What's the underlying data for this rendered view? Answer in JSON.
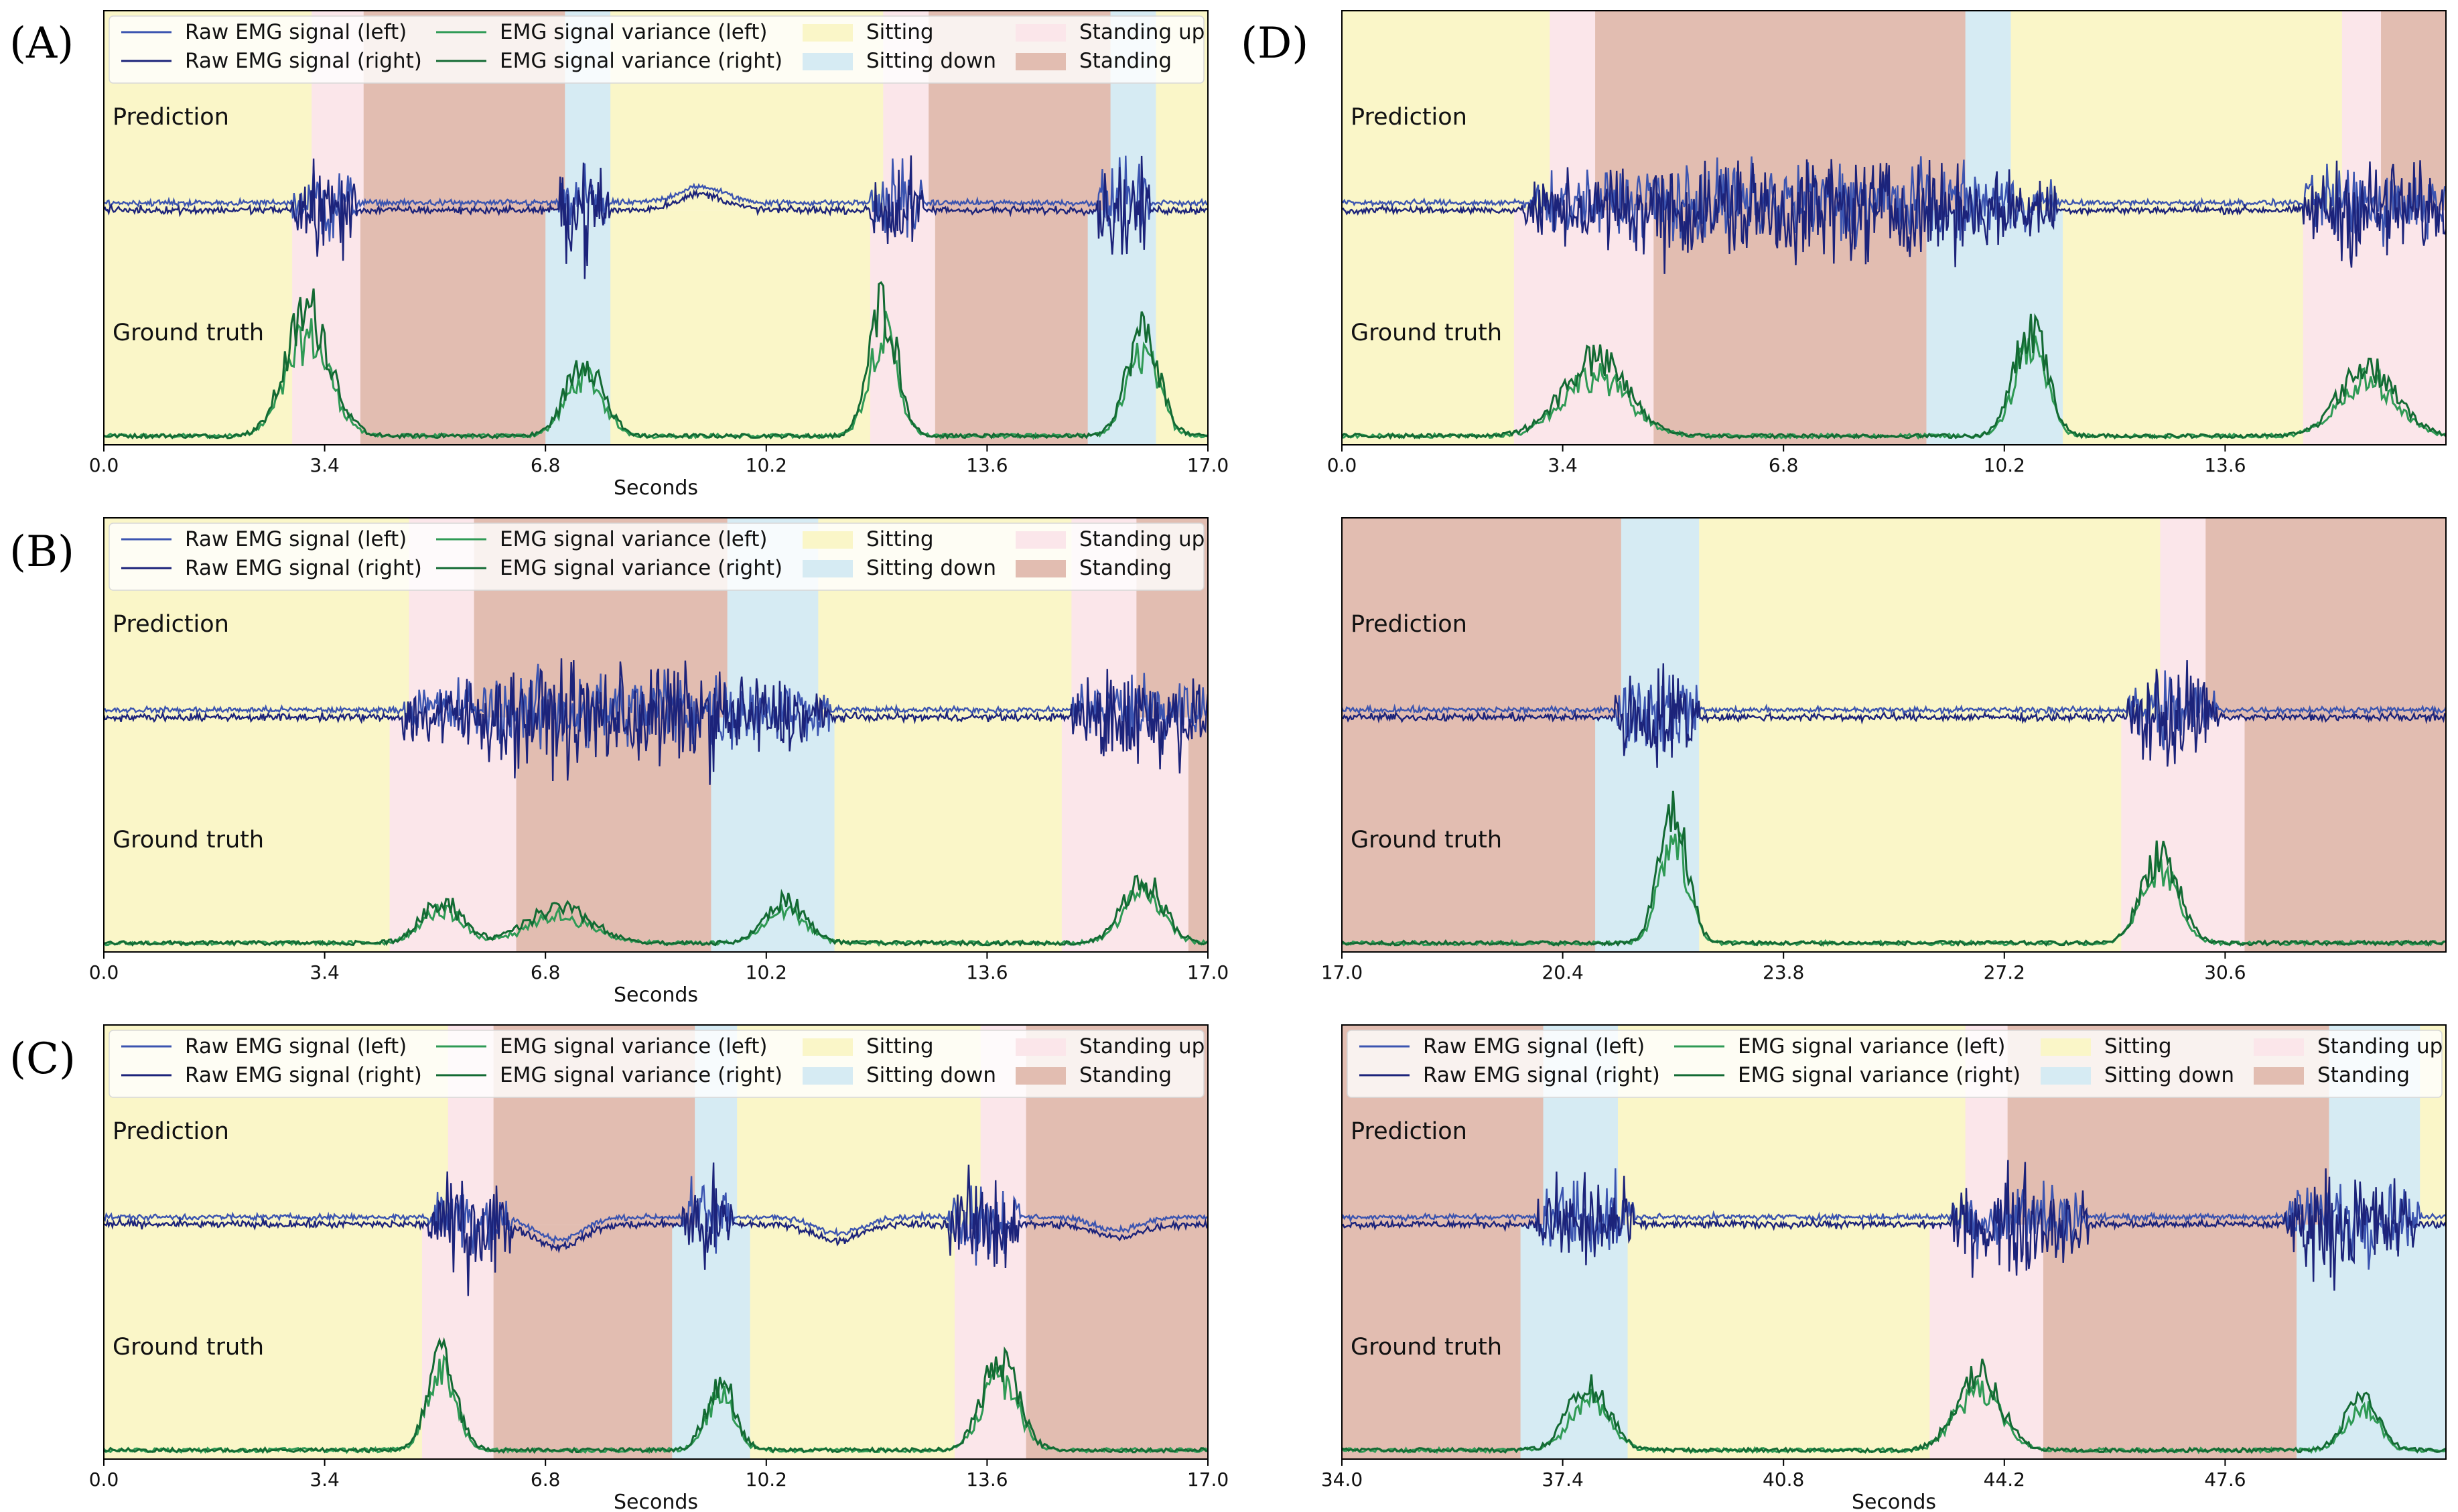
{
  "colors": {
    "sitting": "#faf6c8",
    "sitting_down": "#d6ebf3",
    "standing_up": "#fbe6ea",
    "standing": "#e2bdb1",
    "raw_left": "#3b54b0",
    "raw_right": "#1c237a",
    "var_left": "#2f9a55",
    "var_right": "#136a33"
  },
  "legend": {
    "raw_left": "Raw EMG signal (left)",
    "raw_right": "Raw EMG signal (right)",
    "var_left": "EMG signal variance (left)",
    "var_right": "EMG signal variance (right)",
    "sitting": "Sitting",
    "sitting_down": "Sitting down",
    "standing_up": "Standing up",
    "standing": "Standing"
  },
  "band_labels": {
    "prediction": "Prediction",
    "ground_truth": "Ground truth"
  },
  "chart_data": [
    {
      "type": "line",
      "panel_label": "(A)",
      "xlabel": "Seconds",
      "xlim": [
        0,
        17
      ],
      "xticks": [
        0.0,
        3.4,
        6.8,
        10.2,
        13.6,
        17.0
      ],
      "xtick_labels": [
        "0.0",
        "3.4",
        "6.8",
        "10.2",
        "13.6",
        "17.0"
      ],
      "legend": true,
      "prediction": [
        {
          "state": "sitting",
          "start": 0.0,
          "end": 3.2
        },
        {
          "state": "standing_up",
          "start": 3.2,
          "end": 4.0
        },
        {
          "state": "standing",
          "start": 4.0,
          "end": 7.1
        },
        {
          "state": "sitting_down",
          "start": 7.1,
          "end": 7.8
        },
        {
          "state": "sitting",
          "start": 7.8,
          "end": 12.0
        },
        {
          "state": "standing_up",
          "start": 12.0,
          "end": 12.7
        },
        {
          "state": "standing",
          "start": 12.7,
          "end": 15.5
        },
        {
          "state": "sitting_down",
          "start": 15.5,
          "end": 16.2
        },
        {
          "state": "sitting",
          "start": 16.2,
          "end": 17.0
        }
      ],
      "ground_truth": [
        {
          "state": "sitting",
          "start": 0.0,
          "end": 2.9
        },
        {
          "state": "standing_up",
          "start": 2.9,
          "end": 3.95
        },
        {
          "state": "standing",
          "start": 3.95,
          "end": 6.8
        },
        {
          "state": "sitting_down",
          "start": 6.8,
          "end": 7.8
        },
        {
          "state": "sitting",
          "start": 7.8,
          "end": 11.8
        },
        {
          "state": "standing_up",
          "start": 11.8,
          "end": 12.8
        },
        {
          "state": "standing",
          "start": 12.8,
          "end": 15.15
        },
        {
          "state": "sitting_down",
          "start": 15.15,
          "end": 16.2
        },
        {
          "state": "sitting",
          "start": 16.2,
          "end": 17.0
        }
      ],
      "burst_windows": [
        [
          2.9,
          3.9
        ],
        [
          7.0,
          7.8
        ],
        [
          11.8,
          12.6
        ],
        [
          15.3,
          16.1
        ]
      ],
      "bumps": [
        [
          9.2,
          0.25
        ]
      ],
      "variance_peaks": [
        [
          3.15,
          0.9,
          0.55
        ],
        [
          7.4,
          0.55,
          0.45
        ],
        [
          12.0,
          0.95,
          0.35
        ],
        [
          16.0,
          0.75,
          0.4
        ]
      ]
    },
    {
      "type": "line",
      "panel_label": "(B)",
      "xlabel": "Seconds",
      "xlim": [
        0,
        17
      ],
      "xticks": [
        0.0,
        3.4,
        6.8,
        10.2,
        13.6,
        17.0
      ],
      "xtick_labels": [
        "0.0",
        "3.4",
        "6.8",
        "10.2",
        "13.6",
        "17.0"
      ],
      "legend": true,
      "prediction": [
        {
          "state": "sitting",
          "start": 0.0,
          "end": 4.7
        },
        {
          "state": "standing_up",
          "start": 4.7,
          "end": 5.7
        },
        {
          "state": "standing",
          "start": 5.7,
          "end": 9.6
        },
        {
          "state": "sitting_down",
          "start": 9.6,
          "end": 11.0
        },
        {
          "state": "sitting",
          "start": 11.0,
          "end": 14.9
        },
        {
          "state": "standing_up",
          "start": 14.9,
          "end": 15.9
        },
        {
          "state": "standing",
          "start": 15.9,
          "end": 17.0
        }
      ],
      "ground_truth": [
        {
          "state": "sitting",
          "start": 0.0,
          "end": 4.4
        },
        {
          "state": "standing_up",
          "start": 4.4,
          "end": 6.35
        },
        {
          "state": "standing",
          "start": 6.35,
          "end": 9.35
        },
        {
          "state": "sitting_down",
          "start": 9.35,
          "end": 11.25
        },
        {
          "state": "sitting",
          "start": 11.25,
          "end": 14.75
        },
        {
          "state": "standing_up",
          "start": 14.75,
          "end": 16.7
        },
        {
          "state": "standing",
          "start": 16.7,
          "end": 17.0
        }
      ],
      "burst_windows": [
        [
          4.6,
          11.2
        ],
        [
          14.9,
          17.0
        ]
      ],
      "bumps": [],
      "variance_peaks": [
        [
          5.2,
          0.3,
          0.5
        ],
        [
          7.0,
          0.25,
          0.8
        ],
        [
          10.5,
          0.3,
          0.5
        ],
        [
          16.0,
          0.45,
          0.5
        ]
      ]
    },
    {
      "type": "line",
      "panel_label": "(C)",
      "xlabel": "Seconds",
      "xlim": [
        0,
        17
      ],
      "xticks": [
        0.0,
        3.4,
        6.8,
        10.2,
        13.6,
        17.0
      ],
      "xtick_labels": [
        "0.0",
        "3.4",
        "6.8",
        "10.2",
        "13.6",
        "17.0"
      ],
      "legend": true,
      "prediction": [
        {
          "state": "sitting",
          "start": 0.0,
          "end": 5.3
        },
        {
          "state": "standing_up",
          "start": 5.3,
          "end": 6.0
        },
        {
          "state": "standing",
          "start": 6.0,
          "end": 9.1
        },
        {
          "state": "sitting_down",
          "start": 9.1,
          "end": 9.75
        },
        {
          "state": "sitting",
          "start": 9.75,
          "end": 13.5
        },
        {
          "state": "standing_up",
          "start": 13.5,
          "end": 14.2
        },
        {
          "state": "standing",
          "start": 14.2,
          "end": 17.0
        }
      ],
      "ground_truth": [
        {
          "state": "sitting",
          "start": 0.0,
          "end": 4.9
        },
        {
          "state": "standing_up",
          "start": 4.9,
          "end": 6.0
        },
        {
          "state": "standing",
          "start": 6.0,
          "end": 8.75
        },
        {
          "state": "sitting_down",
          "start": 8.75,
          "end": 9.95
        },
        {
          "state": "sitting",
          "start": 9.95,
          "end": 13.1
        },
        {
          "state": "standing_up",
          "start": 13.1,
          "end": 14.2
        },
        {
          "state": "standing",
          "start": 14.2,
          "end": 17.0
        }
      ],
      "burst_windows": [
        [
          5.0,
          6.3
        ],
        [
          8.9,
          9.7
        ],
        [
          13.0,
          14.1
        ]
      ],
      "bumps": [
        [
          7.0,
          -0.35
        ],
        [
          11.3,
          -0.25
        ],
        [
          15.6,
          -0.2
        ]
      ],
      "variance_peaks": [
        [
          5.2,
          0.75,
          0.35
        ],
        [
          9.5,
          0.5,
          0.35
        ],
        [
          13.8,
          0.65,
          0.45
        ]
      ]
    },
    {
      "type": "line",
      "panel_label": "(D)",
      "xlabel": "",
      "xlim": [
        0,
        17
      ],
      "xticks": [
        0.0,
        3.4,
        6.8,
        10.2,
        13.6
      ],
      "xtick_labels": [
        "0.0",
        "3.4",
        "6.8",
        "10.2",
        "13.6"
      ],
      "legend": false,
      "prediction": [
        {
          "state": "sitting",
          "start": 0.0,
          "end": 3.2
        },
        {
          "state": "standing_up",
          "start": 3.2,
          "end": 3.9
        },
        {
          "state": "standing",
          "start": 3.9,
          "end": 9.6
        },
        {
          "state": "sitting_down",
          "start": 9.6,
          "end": 10.3
        },
        {
          "state": "sitting",
          "start": 10.3,
          "end": 15.4
        },
        {
          "state": "standing_up",
          "start": 15.4,
          "end": 16.0
        },
        {
          "state": "standing",
          "start": 16.0,
          "end": 17.0
        }
      ],
      "ground_truth": [
        {
          "state": "sitting",
          "start": 0.0,
          "end": 2.65
        },
        {
          "state": "standing_up",
          "start": 2.65,
          "end": 4.8
        },
        {
          "state": "standing",
          "start": 4.8,
          "end": 9.0
        },
        {
          "state": "sitting_down",
          "start": 9.0,
          "end": 11.1
        },
        {
          "state": "sitting",
          "start": 11.1,
          "end": 14.8
        },
        {
          "state": "standing_up",
          "start": 14.8,
          "end": 17.0
        }
      ],
      "burst_windows": [
        [
          2.8,
          11.0
        ],
        [
          14.8,
          17.0
        ]
      ],
      "bumps": [],
      "variance_peaks": [
        [
          3.9,
          0.55,
          0.8
        ],
        [
          10.6,
          0.8,
          0.4
        ],
        [
          15.8,
          0.5,
          0.7
        ]
      ]
    },
    {
      "type": "line",
      "panel_label": "",
      "xlabel": "",
      "xlim": [
        17,
        34
      ],
      "xticks": [
        17.0,
        20.4,
        23.8,
        27.2,
        30.6
      ],
      "xtick_labels": [
        "17.0",
        "20.4",
        "23.8",
        "27.2",
        "30.6"
      ],
      "legend": false,
      "prediction": [
        {
          "state": "standing",
          "start": 17.0,
          "end": 21.3
        },
        {
          "state": "sitting_down",
          "start": 21.3,
          "end": 22.5
        },
        {
          "state": "sitting",
          "start": 22.5,
          "end": 29.6
        },
        {
          "state": "standing_up",
          "start": 29.6,
          "end": 30.3
        },
        {
          "state": "standing",
          "start": 30.3,
          "end": 34.0
        }
      ],
      "ground_truth": [
        {
          "state": "standing",
          "start": 17.0,
          "end": 20.9
        },
        {
          "state": "sitting_down",
          "start": 20.9,
          "end": 22.5
        },
        {
          "state": "sitting",
          "start": 22.5,
          "end": 29.0
        },
        {
          "state": "standing_up",
          "start": 29.0,
          "end": 30.9
        },
        {
          "state": "standing",
          "start": 30.9,
          "end": 34.0
        }
      ],
      "burst_windows": [
        [
          21.2,
          22.5
        ],
        [
          29.1,
          30.5
        ]
      ],
      "bumps": [],
      "variance_peaks": [
        [
          22.1,
          0.95,
          0.35
        ],
        [
          29.6,
          0.65,
          0.45
        ]
      ]
    },
    {
      "type": "line",
      "panel_label": "",
      "xlabel": "Seconds",
      "xlim": [
        34,
        51
      ],
      "xticks": [
        34.0,
        37.4,
        40.8,
        44.2,
        47.6
      ],
      "xtick_labels": [
        "34.0",
        "37.4",
        "40.8",
        "44.2",
        "47.6"
      ],
      "legend": true,
      "prediction": [
        {
          "state": "standing",
          "start": 34.0,
          "end": 37.1
        },
        {
          "state": "sitting_down",
          "start": 37.1,
          "end": 38.25
        },
        {
          "state": "sitting",
          "start": 38.25,
          "end": 43.6
        },
        {
          "state": "standing_up",
          "start": 43.6,
          "end": 44.25
        },
        {
          "state": "standing",
          "start": 44.25,
          "end": 49.2
        },
        {
          "state": "sitting_down",
          "start": 49.2,
          "end": 50.6
        },
        {
          "state": "sitting",
          "start": 50.6,
          "end": 51.0
        }
      ],
      "ground_truth": [
        {
          "state": "standing",
          "start": 34.0,
          "end": 36.75
        },
        {
          "state": "sitting_down",
          "start": 36.75,
          "end": 38.4
        },
        {
          "state": "sitting",
          "start": 38.4,
          "end": 43.05
        },
        {
          "state": "standing_up",
          "start": 43.05,
          "end": 44.8
        },
        {
          "state": "standing",
          "start": 44.8,
          "end": 48.7
        },
        {
          "state": "sitting_down",
          "start": 48.7,
          "end": 51.0
        }
      ],
      "burst_windows": [
        [
          37.0,
          38.5
        ],
        [
          43.4,
          45.5
        ],
        [
          48.5,
          50.6
        ]
      ],
      "bumps": [],
      "variance_peaks": [
        [
          37.8,
          0.45,
          0.5
        ],
        [
          43.8,
          0.55,
          0.55
        ],
        [
          49.7,
          0.4,
          0.4
        ]
      ]
    }
  ]
}
